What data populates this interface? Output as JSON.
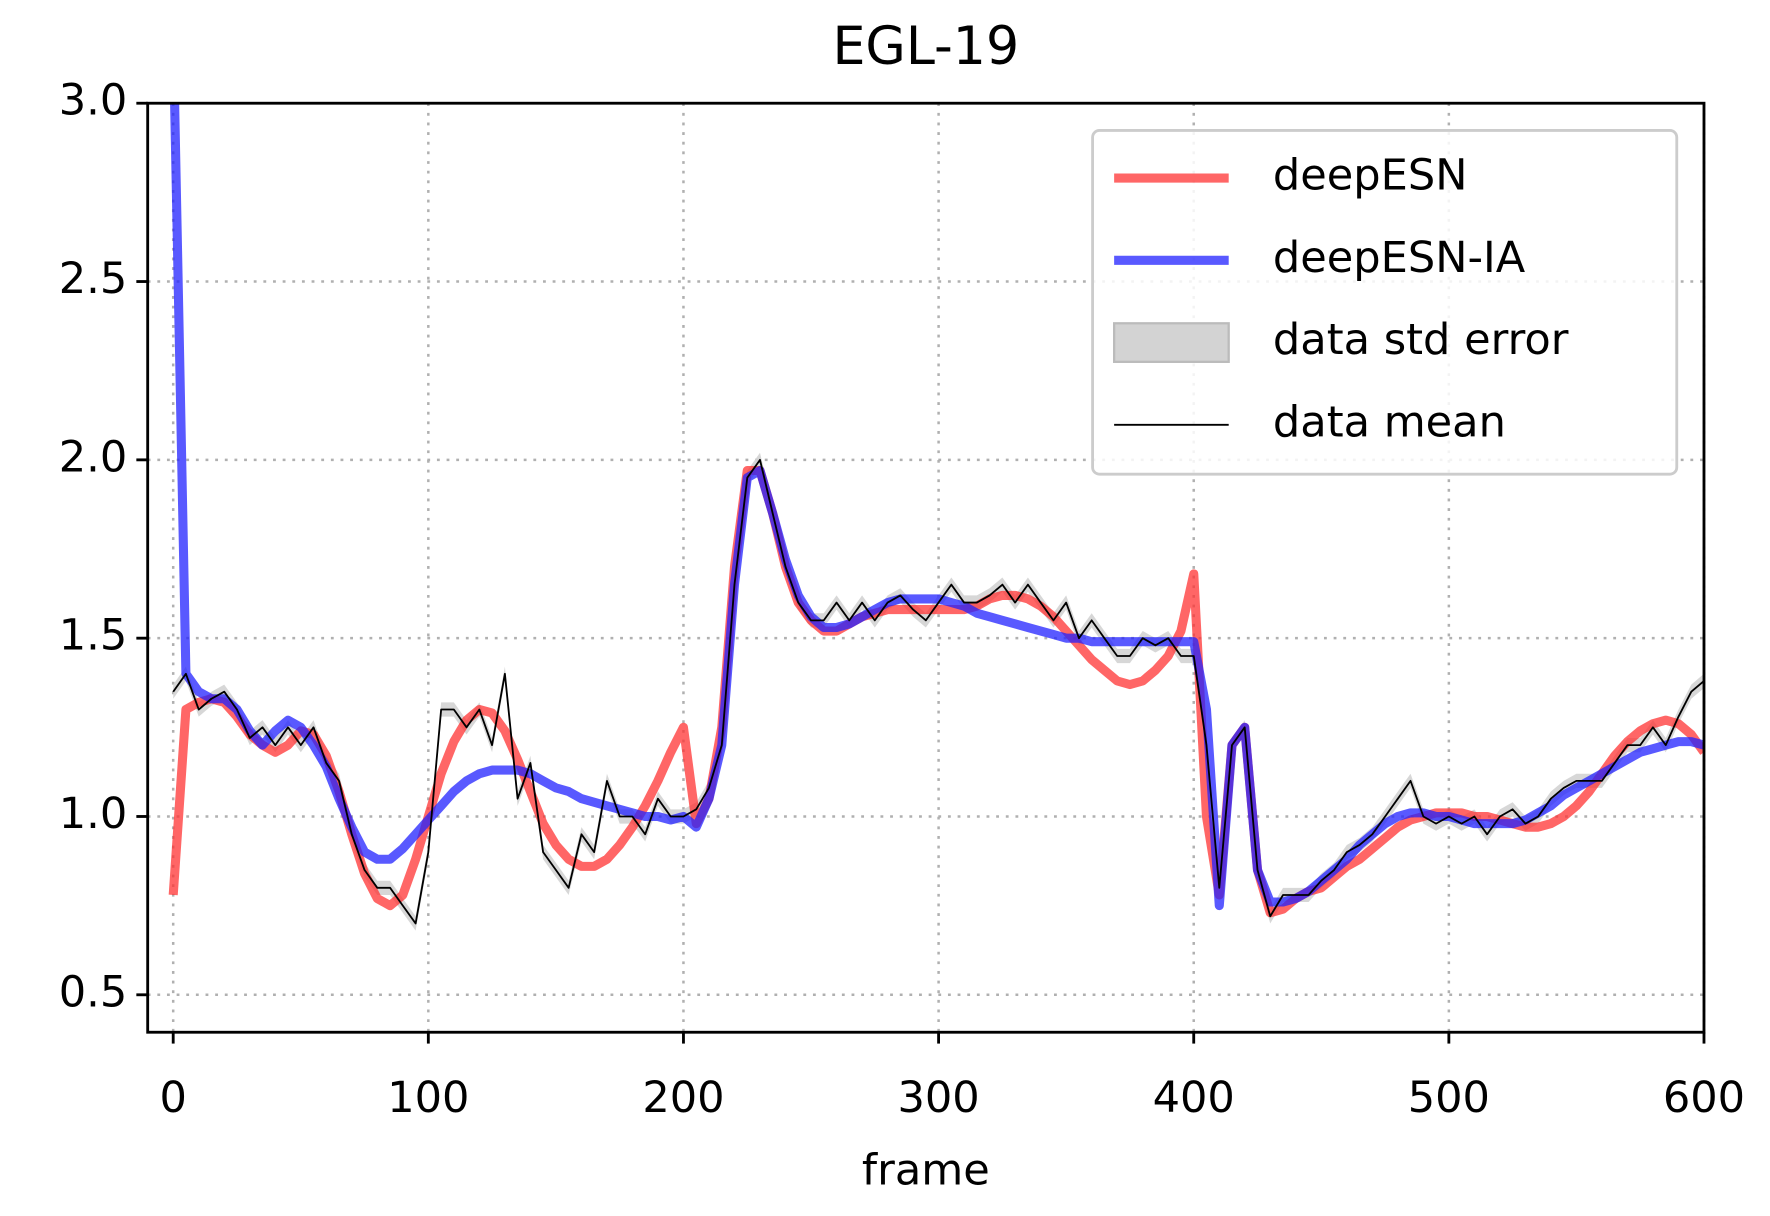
{
  "chart_data": {
    "type": "line",
    "title": "EGL-19",
    "x_label": "frame",
    "x": [
      0,
      5,
      10,
      15,
      20,
      25,
      30,
      35,
      40,
      45,
      50,
      55,
      60,
      65,
      70,
      75,
      80,
      85,
      90,
      95,
      100,
      105,
      110,
      115,
      120,
      125,
      130,
      135,
      140,
      145,
      150,
      155,
      160,
      165,
      170,
      175,
      180,
      185,
      190,
      195,
      200,
      205,
      210,
      215,
      220,
      225,
      230,
      235,
      240,
      245,
      250,
      255,
      260,
      265,
      270,
      275,
      280,
      285,
      290,
      295,
      300,
      305,
      310,
      315,
      320,
      325,
      330,
      335,
      340,
      345,
      350,
      355,
      360,
      365,
      370,
      375,
      380,
      385,
      390,
      395,
      400,
      405,
      410,
      415,
      420,
      425,
      430,
      435,
      440,
      445,
      450,
      455,
      460,
      465,
      470,
      475,
      480,
      485,
      490,
      495,
      500,
      505,
      510,
      515,
      520,
      525,
      530,
      535,
      540,
      545,
      550,
      555,
      560,
      565,
      570,
      575,
      580,
      585,
      590,
      595,
      600
    ],
    "series": [
      {
        "name": "deepESN",
        "color": "#ff3333",
        "style": "line",
        "width": 8,
        "values": [
          0.78,
          1.3,
          1.32,
          1.33,
          1.32,
          1.28,
          1.23,
          1.2,
          1.18,
          1.2,
          1.24,
          1.23,
          1.17,
          1.07,
          0.95,
          0.84,
          0.77,
          0.75,
          0.78,
          0.88,
          1.0,
          1.12,
          1.21,
          1.27,
          1.3,
          1.29,
          1.24,
          1.16,
          1.07,
          0.98,
          0.92,
          0.88,
          0.86,
          0.86,
          0.88,
          0.92,
          0.97,
          1.03,
          1.1,
          1.18,
          1.25,
          0.98,
          1.05,
          1.25,
          1.7,
          1.97,
          1.97,
          1.85,
          1.7,
          1.6,
          1.55,
          1.52,
          1.52,
          1.54,
          1.56,
          1.57,
          1.58,
          1.58,
          1.58,
          1.58,
          1.58,
          1.58,
          1.58,
          1.59,
          1.61,
          1.62,
          1.62,
          1.61,
          1.59,
          1.56,
          1.52,
          1.48,
          1.44,
          1.41,
          1.38,
          1.37,
          1.38,
          1.41,
          1.45,
          1.52,
          1.68,
          1.0,
          0.78,
          1.2,
          1.25,
          0.85,
          0.73,
          0.74,
          0.77,
          0.79,
          0.8,
          0.83,
          0.86,
          0.88,
          0.91,
          0.94,
          0.97,
          0.99,
          1.0,
          1.01,
          1.01,
          1.01,
          1.0,
          1.0,
          0.99,
          0.98,
          0.97,
          0.97,
          0.98,
          1.0,
          1.03,
          1.07,
          1.12,
          1.17,
          1.21,
          1.24,
          1.26,
          1.27,
          1.26,
          1.23,
          1.18
        ]
      },
      {
        "name": "deepESN-IA",
        "color": "#2222ff",
        "style": "line",
        "width": 8,
        "values": [
          3.2,
          1.4,
          1.35,
          1.33,
          1.33,
          1.3,
          1.24,
          1.2,
          1.24,
          1.27,
          1.25,
          1.2,
          1.14,
          1.05,
          0.97,
          0.9,
          0.88,
          0.88,
          0.91,
          0.95,
          0.99,
          1.03,
          1.07,
          1.1,
          1.12,
          1.13,
          1.13,
          1.13,
          1.12,
          1.1,
          1.08,
          1.07,
          1.05,
          1.04,
          1.03,
          1.02,
          1.01,
          1.0,
          1.0,
          0.99,
          1.0,
          0.97,
          1.05,
          1.2,
          1.65,
          1.95,
          1.97,
          1.85,
          1.72,
          1.62,
          1.56,
          1.53,
          1.53,
          1.54,
          1.56,
          1.58,
          1.6,
          1.61,
          1.61,
          1.61,
          1.61,
          1.6,
          1.59,
          1.57,
          1.56,
          1.55,
          1.54,
          1.53,
          1.52,
          1.51,
          1.5,
          1.5,
          1.49,
          1.49,
          1.49,
          1.49,
          1.49,
          1.49,
          1.49,
          1.49,
          1.49,
          1.3,
          0.75,
          1.2,
          1.25,
          0.85,
          0.76,
          0.76,
          0.77,
          0.79,
          0.82,
          0.85,
          0.88,
          0.92,
          0.95,
          0.98,
          1.0,
          1.01,
          1.01,
          1.0,
          1.0,
          0.99,
          0.98,
          0.98,
          0.98,
          0.98,
          0.99,
          1.01,
          1.03,
          1.06,
          1.08,
          1.1,
          1.12,
          1.14,
          1.16,
          1.18,
          1.19,
          1.2,
          1.21,
          1.21,
          1.2
        ]
      },
      {
        "name": "data std error",
        "color": "#d3d3d3",
        "style": "band",
        "around": 3,
        "values": [
          0.02,
          0.02,
          0.02,
          0.02,
          0.02,
          0.02,
          0.02,
          0.02,
          0.02,
          0.02,
          0.02,
          0.02,
          0.02,
          0.02,
          0.02,
          0.02,
          0.02,
          0.02,
          0.02,
          0.02,
          0.02,
          0.02,
          0.02,
          0.02,
          0.02,
          0.02,
          0.02,
          0.02,
          0.02,
          0.02,
          0.02,
          0.02,
          0.02,
          0.02,
          0.02,
          0.02,
          0.02,
          0.02,
          0.02,
          0.02,
          0.02,
          0.02,
          0.02,
          0.02,
          0.02,
          0.02,
          0.02,
          0.02,
          0.02,
          0.02,
          0.02,
          0.02,
          0.02,
          0.02,
          0.02,
          0.02,
          0.02,
          0.02,
          0.02,
          0.02,
          0.02,
          0.02,
          0.02,
          0.02,
          0.02,
          0.02,
          0.02,
          0.02,
          0.02,
          0.02,
          0.02,
          0.02,
          0.02,
          0.02,
          0.02,
          0.02,
          0.02,
          0.02,
          0.02,
          0.02,
          0.02,
          0.02,
          0.02,
          0.02,
          0.02,
          0.02,
          0.02,
          0.02,
          0.02,
          0.02,
          0.02,
          0.02,
          0.02,
          0.02,
          0.02,
          0.02,
          0.02,
          0.02,
          0.02,
          0.02,
          0.02,
          0.02,
          0.02,
          0.02,
          0.02,
          0.02,
          0.02,
          0.02,
          0.02,
          0.02,
          0.02,
          0.02,
          0.02,
          0.02,
          0.02,
          0.02,
          0.02,
          0.02,
          0.02,
          0.02,
          0.02
        ]
      },
      {
        "name": "data mean",
        "color": "#000000",
        "style": "line",
        "width": 1.6,
        "values": [
          1.35,
          1.4,
          1.3,
          1.33,
          1.35,
          1.3,
          1.22,
          1.25,
          1.2,
          1.25,
          1.2,
          1.25,
          1.15,
          1.1,
          0.95,
          0.85,
          0.8,
          0.8,
          0.75,
          0.7,
          0.9,
          1.3,
          1.3,
          1.25,
          1.3,
          1.2,
          1.4,
          1.05,
          1.15,
          0.9,
          0.85,
          0.8,
          0.95,
          0.9,
          1.1,
          1.0,
          1.0,
          0.95,
          1.05,
          1.0,
          1.0,
          1.02,
          1.08,
          1.2,
          1.65,
          1.95,
          2.0,
          1.85,
          1.7,
          1.6,
          1.55,
          1.55,
          1.6,
          1.55,
          1.6,
          1.55,
          1.6,
          1.62,
          1.58,
          1.55,
          1.6,
          1.65,
          1.6,
          1.6,
          1.62,
          1.65,
          1.6,
          1.65,
          1.6,
          1.55,
          1.6,
          1.5,
          1.55,
          1.5,
          1.45,
          1.45,
          1.5,
          1.48,
          1.5,
          1.45,
          1.45,
          1.2,
          0.8,
          1.2,
          1.25,
          0.85,
          0.72,
          0.78,
          0.78,
          0.78,
          0.82,
          0.85,
          0.9,
          0.92,
          0.95,
          1.0,
          1.05,
          1.1,
          1.0,
          0.98,
          1.0,
          0.98,
          1.0,
          0.95,
          1.0,
          1.02,
          0.98,
          1.0,
          1.05,
          1.08,
          1.1,
          1.1,
          1.1,
          1.15,
          1.2,
          1.2,
          1.25,
          1.2,
          1.28,
          1.35,
          1.38
        ]
      }
    ],
    "xlim": [
      -10,
      600
    ],
    "ylim": [
      0.395,
      3.0
    ],
    "xticks": [
      0,
      100,
      200,
      300,
      400,
      500,
      600
    ],
    "yticks": [
      {
        "value": 0.5,
        "label": "0.5"
      },
      {
        "value": 1.0,
        "label": "1.0"
      },
      {
        "value": 1.5,
        "label": "1.5"
      },
      {
        "value": 2.0,
        "label": "2.0"
      },
      {
        "value": 2.5,
        "label": "2.5"
      },
      {
        "value": 3.0,
        "label": "3.0"
      }
    ],
    "grid": true,
    "legend": "upper right"
  }
}
